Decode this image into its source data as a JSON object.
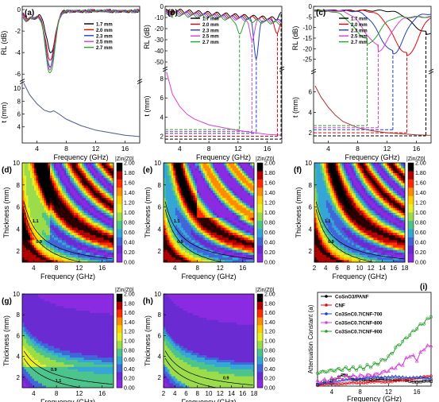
{
  "figure": {
    "layout": "3x3 composite panel"
  },
  "legend_thicknesses": [
    "1.7 mm",
    "2.0 mm",
    "2.3 mm",
    "2.5 mm",
    "2.7 mm"
  ],
  "series_colors": [
    "#000000",
    "#e8000b",
    "#1f3fbf",
    "#d43fd4",
    "#2ca02c"
  ],
  "colorbar": {
    "title": "|Zin/Z0|",
    "ticks": [
      "2.00",
      "1.80",
      "1.60",
      "1.40",
      "1.20",
      "1.00",
      "0.80",
      "0.60",
      "0.40",
      "0.20",
      "0.00"
    ],
    "colors": [
      "#2b0000",
      "#b30000",
      "#ff2a00",
      "#ff8c00",
      "#ffd000",
      "#e6ef2a",
      "#9bdc4a",
      "#4cc48c",
      "#35a6d6",
      "#4066d8",
      "#6b2bd2",
      "#8a2be2"
    ]
  },
  "chart_data": [
    {
      "id": "a",
      "label": "(a)",
      "type": "line",
      "xlabel": "Frequency (GHz)",
      "xticks": [
        "4",
        "8",
        "12",
        "16"
      ],
      "xlim": [
        2,
        18
      ],
      "top": {
        "ylabel": "RL (dB)",
        "ylim": [
          -6.5,
          0.3
        ],
        "yticks": [
          "0",
          "-2",
          "-4",
          "-6"
        ],
        "series": [
          {
            "name": "1.7 mm",
            "min_at": [
              5.9,
              -3.9
            ],
            "shoulder": [
              2.6,
              -0.6
            ],
            "tail": -0.1
          },
          {
            "name": "2.0 mm",
            "min_at": [
              5.8,
              -4.6
            ],
            "shoulder": [
              2.6,
              -0.7
            ],
            "tail": -0.1
          },
          {
            "name": "2.3 mm",
            "min_at": [
              5.8,
              -5.2
            ],
            "shoulder": [
              2.5,
              -0.8
            ],
            "tail": -0.1
          },
          {
            "name": "2.5 mm",
            "min_at": [
              5.8,
              -5.5
            ],
            "shoulder": [
              2.5,
              -0.8
            ],
            "tail": -0.1
          },
          {
            "name": "2.7 mm",
            "min_at": [
              5.8,
              -5.9
            ],
            "shoulder": [
              2.5,
              -0.9
            ],
            "tail": -0.1
          }
        ]
      },
      "bottom": {
        "ylabel": "t (mm)",
        "ylim": [
          1.5,
          11
        ],
        "yticks": [
          "10",
          "8",
          "6",
          "4"
        ],
        "curve": [
          [
            2.2,
            10.8
          ],
          [
            3,
            9.0
          ],
          [
            4,
            7.6
          ],
          [
            5,
            6.6
          ],
          [
            5.8,
            6.3
          ],
          [
            6.3,
            6.5
          ],
          [
            7,
            6.0
          ],
          [
            8,
            5.2
          ],
          [
            10,
            4.2
          ],
          [
            12,
            3.5
          ],
          [
            14,
            3.1
          ],
          [
            16,
            2.7
          ],
          [
            18,
            2.5
          ]
        ]
      }
    },
    {
      "id": "b",
      "label": "(b)",
      "type": "line",
      "xlabel": "Frequency (GHz)",
      "xticks": [
        "4",
        "8",
        "12",
        "16"
      ],
      "xlim": [
        2,
        18
      ],
      "top": {
        "ylabel": "RL (dB)",
        "ylim": [
          -55,
          0
        ],
        "yticks": [
          "0",
          "-10",
          "-20",
          "-30",
          "-40",
          "-50"
        ],
        "series": [
          {
            "name": "1.7 mm",
            "min_at": [
              17.9,
              -7
            ]
          },
          {
            "name": "2.0 mm",
            "min_at": [
              17.4,
              -24
            ]
          },
          {
            "name": "2.3 mm",
            "min_at": [
              14.5,
              -46
            ]
          },
          {
            "name": "2.5 mm",
            "min_at": [
              13.9,
              -30
            ]
          },
          {
            "name": "2.7 mm",
            "min_at": [
              12.2,
              -26
            ]
          }
        ]
      },
      "bottom": {
        "ylabel": "t (mm)",
        "ylim": [
          1.3,
          9
        ],
        "yticks": [
          "8",
          "6",
          "4",
          "2"
        ],
        "curve": [
          [
            2.2,
            8.7
          ],
          [
            3,
            6.4
          ],
          [
            4,
            5.1
          ],
          [
            5,
            4.3
          ],
          [
            6,
            3.8
          ],
          [
            8,
            3.2
          ],
          [
            10,
            2.9
          ],
          [
            12,
            2.6
          ],
          [
            14,
            2.4
          ],
          [
            16,
            2.2
          ],
          [
            18,
            2.1
          ]
        ],
        "guides": [
          [
            12.2,
            2.7
          ],
          [
            13.9,
            2.5
          ],
          [
            14.5,
            2.3
          ],
          [
            17.4,
            2.0
          ],
          [
            17.9,
            1.7
          ]
        ]
      }
    },
    {
      "id": "c",
      "label": "(c)",
      "type": "line",
      "xlabel": "Frequency (GHz)",
      "xticks": [
        "4",
        "8",
        "12",
        "16"
      ],
      "xlim": [
        2,
        18
      ],
      "top": {
        "ylabel": "RL (dB)",
        "ylim": [
          -30,
          0
        ],
        "yticks": [
          "0",
          "-5",
          "-10",
          "-15",
          "-20",
          "-25"
        ],
        "series": [
          {
            "name": "1.7 mm",
            "min_at": [
              17.3,
              -12
            ]
          },
          {
            "name": "2.0 mm",
            "min_at": [
              14.7,
              -22
            ]
          },
          {
            "name": "2.3 mm",
            "min_at": [
              12.8,
              -21
            ]
          },
          {
            "name": "2.5 mm",
            "min_at": [
              10.8,
              -18
            ]
          },
          {
            "name": "2.7 mm",
            "min_at": [
              9.3,
              -15
            ]
          }
        ]
      },
      "bottom": {
        "ylabel": "t (mm)",
        "ylim": [
          1,
          8
        ],
        "yticks": [
          "6",
          "4",
          "2"
        ],
        "curve": [
          [
            2.2,
            6.6
          ],
          [
            3,
            5.5
          ],
          [
            4,
            4.5
          ],
          [
            5,
            3.7
          ],
          [
            6,
            3.1
          ],
          [
            8,
            2.5
          ],
          [
            10,
            2.2
          ],
          [
            12,
            2.0
          ],
          [
            14,
            1.9
          ],
          [
            16,
            1.8
          ],
          [
            18,
            1.75
          ]
        ],
        "guides": [
          [
            9.3,
            2.7
          ],
          [
            10.8,
            2.5
          ],
          [
            12.8,
            2.3
          ],
          [
            14.7,
            2.0
          ],
          [
            17.3,
            1.7
          ]
        ]
      }
    },
    {
      "id": "d",
      "label": "(d)",
      "type": "heatmap",
      "style": "d",
      "xlabel": "Frequency (GHz)",
      "ylabel": "Thickness (mm)",
      "xticks": [
        "4",
        "8",
        "12",
        "16"
      ],
      "yticks": [
        "10",
        "8",
        "6",
        "4",
        "2"
      ],
      "xlim": [
        2,
        18
      ],
      "ylim": [
        1,
        10
      ],
      "contour_labels": [
        "1.1",
        "0.9"
      ]
    },
    {
      "id": "e",
      "label": "(e)",
      "type": "heatmap",
      "style": "e",
      "xlabel": "Frequency (GHz)",
      "ylabel": "Thickness (mm)",
      "xticks": [
        "4",
        "8",
        "12",
        "16"
      ],
      "yticks": [
        "10",
        "8",
        "6",
        "4",
        "2"
      ],
      "xlim": [
        2,
        18
      ],
      "ylim": [
        1,
        10
      ],
      "contour_labels": [
        "1.1",
        "0.9"
      ]
    },
    {
      "id": "f",
      "label": "(f)",
      "type": "heatmap",
      "style": "f",
      "xlabel": "Frequency (GHz)",
      "ylabel": "Thickness (mm)",
      "xticks": [
        "2",
        "4",
        "6",
        "8",
        "10",
        "12",
        "14",
        "16",
        "18"
      ],
      "yticks": [
        "10",
        "8",
        "6",
        "4",
        "2"
      ],
      "xlim": [
        2,
        18
      ],
      "ylim": [
        1,
        10
      ],
      "contour_labels": [
        "1.1",
        "0.9"
      ]
    },
    {
      "id": "g",
      "label": "(g)",
      "type": "heatmap",
      "style": "g",
      "xlabel": "Frequency (GHz)",
      "ylabel": "Thickness (mm)",
      "xticks": [
        "4",
        "8",
        "12",
        "16"
      ],
      "yticks": [
        "10",
        "8",
        "6",
        "4",
        "2"
      ],
      "xlim": [
        2,
        18
      ],
      "ylim": [
        1,
        10
      ],
      "contour_labels": [
        "0.9",
        "1.1"
      ]
    },
    {
      "id": "h",
      "label": "(h)",
      "type": "heatmap",
      "style": "h",
      "xlabel": "Frequency (GHz)",
      "ylabel": "Thickness (mm)",
      "xticks": [
        "2",
        "4",
        "6",
        "8",
        "10",
        "12",
        "14",
        "16",
        "18"
      ],
      "yticks": [
        "10",
        "8",
        "6",
        "4",
        "2"
      ],
      "xlim": [
        2,
        18
      ],
      "ylim": [
        1,
        10
      ],
      "contour_labels": [
        "0.9"
      ]
    },
    {
      "id": "i",
      "label": "(i)",
      "type": "line",
      "xlabel": "Frequency (GHz)",
      "ylabel": "Attenuation Constant (a)",
      "xticks": [
        "4",
        "8",
        "12",
        "16"
      ],
      "xlim": [
        2,
        18
      ],
      "ylim": [
        0,
        420
      ],
      "series": [
        {
          "name": "CoSnO3/PANF",
          "color": "#000000",
          "marker": "square",
          "points": [
            [
              2,
              8
            ],
            [
              3,
              15
            ],
            [
              4,
              22
            ],
            [
              5,
              40
            ],
            [
              5.8,
              55
            ],
            [
              6.3,
              40
            ],
            [
              7,
              30
            ],
            [
              8,
              28
            ],
            [
              10,
              28
            ],
            [
              12,
              30
            ],
            [
              14,
              25
            ],
            [
              16,
              20
            ],
            [
              18,
              22
            ]
          ]
        },
        {
          "name": "CNF",
          "color": "#e8000b",
          "marker": "circle",
          "points": [
            [
              2,
              5
            ],
            [
              4,
              8
            ],
            [
              6,
              12
            ],
            [
              8,
              15
            ],
            [
              10,
              18
            ],
            [
              12,
              20
            ],
            [
              14,
              25
            ],
            [
              16,
              35
            ],
            [
              18,
              45
            ]
          ]
        },
        {
          "name": "Co3SnC0.7/CNF-700",
          "color": "#1f3fbf",
          "marker": "triangle",
          "points": [
            [
              2,
              10
            ],
            [
              4,
              18
            ],
            [
              6,
              28
            ],
            [
              8,
              35
            ],
            [
              10,
              40
            ],
            [
              12,
              42
            ],
            [
              14,
              40
            ],
            [
              16,
              38
            ],
            [
              18,
              36
            ]
          ]
        },
        {
          "name": "Co3SnC0.7/CNF-800",
          "color": "#d43fd4",
          "marker": "triangle",
          "points": [
            [
              2,
              20
            ],
            [
              4,
              30
            ],
            [
              6,
              40
            ],
            [
              8,
              45
            ],
            [
              10,
              50
            ],
            [
              12,
              70
            ],
            [
              14,
              100
            ],
            [
              15,
              140
            ],
            [
              16,
              120
            ],
            [
              17,
              170
            ],
            [
              18,
              180
            ]
          ]
        },
        {
          "name": "Co3SnC0.7/CNF-900",
          "color": "#2ca02c",
          "marker": "circle",
          "points": [
            [
              2,
              60
            ],
            [
              4,
              70
            ],
            [
              6,
              78
            ],
            [
              8,
              80
            ],
            [
              10,
              95
            ],
            [
              12,
              130
            ],
            [
              13,
              170
            ],
            [
              14,
              200
            ],
            [
              15,
              230
            ],
            [
              16,
              260
            ],
            [
              17,
              285
            ],
            [
              18,
              310
            ]
          ]
        }
      ]
    }
  ]
}
